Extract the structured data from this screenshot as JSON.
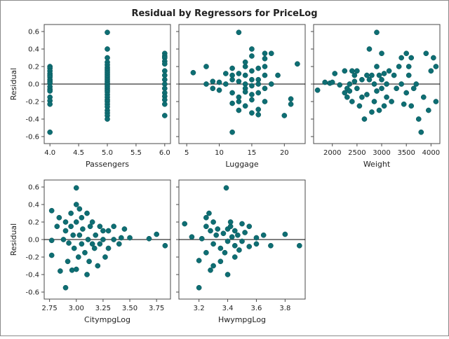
{
  "title": "Residual by Regressors for PriceLog",
  "colors": {
    "marker": "#0e6e73",
    "frame": "#4a4a4a",
    "refline": "#000000",
    "background": "#ffffff"
  },
  "chart_data": [
    {
      "type": "scatter",
      "xlabel": "Passengers",
      "ylabel": "Residual",
      "xlim": [
        3.9,
        6.1
      ],
      "ylim": [
        -0.68,
        0.68
      ],
      "xticks": [
        4.0,
        4.5,
        5.0,
        5.5,
        6.0
      ],
      "xtick_labels": [
        "4.0",
        "4.5",
        "5.0",
        "5.5",
        "6.0"
      ],
      "yticks": [
        -0.6,
        -0.4,
        -0.2,
        0.0,
        0.2,
        0.4,
        0.6
      ],
      "ytick_labels": [
        "-0.6",
        "-0.4",
        "-0.2",
        "0.0",
        "0.2",
        "0.4",
        "0.6"
      ],
      "points": [
        [
          4,
          0.2
        ],
        [
          4,
          0.18
        ],
        [
          4,
          0.15
        ],
        [
          4,
          0.12
        ],
        [
          4,
          0.1
        ],
        [
          4,
          0.08
        ],
        [
          4,
          0.05
        ],
        [
          4,
          0.03
        ],
        [
          4,
          0.01
        ],
        [
          4,
          -0.03
        ],
        [
          4,
          -0.06
        ],
        [
          4,
          -0.08
        ],
        [
          4,
          -0.15
        ],
        [
          4,
          -0.19
        ],
        [
          4,
          -0.23
        ],
        [
          4,
          -0.55
        ],
        [
          5,
          0.59
        ],
        [
          5,
          0.4
        ],
        [
          5,
          0.3
        ],
        [
          5,
          0.25
        ],
        [
          5,
          0.22
        ],
        [
          5,
          0.19
        ],
        [
          5,
          0.17
        ],
        [
          5,
          0.15
        ],
        [
          5,
          0.13
        ],
        [
          5,
          0.11
        ],
        [
          5,
          0.09
        ],
        [
          5,
          0.07
        ],
        [
          5,
          0.05
        ],
        [
          5,
          0.03
        ],
        [
          5,
          0.01
        ],
        [
          5,
          -0.01
        ],
        [
          5,
          -0.03
        ],
        [
          5,
          -0.05
        ],
        [
          5,
          -0.07
        ],
        [
          5,
          -0.09
        ],
        [
          5,
          -0.12
        ],
        [
          5,
          -0.15
        ],
        [
          5,
          -0.18
        ],
        [
          5,
          -0.2
        ],
        [
          5,
          -0.23
        ],
        [
          5,
          -0.26
        ],
        [
          5,
          -0.3
        ],
        [
          5,
          -0.33
        ],
        [
          5,
          -0.36
        ],
        [
          5,
          -0.4
        ],
        [
          6,
          0.35
        ],
        [
          6,
          0.32
        ],
        [
          6,
          0.3
        ],
        [
          6,
          0.26
        ],
        [
          6,
          0.23
        ],
        [
          6,
          0.15
        ],
        [
          6,
          0.1
        ],
        [
          6,
          0.05
        ],
        [
          6,
          0.0
        ],
        [
          6,
          -0.05
        ],
        [
          6,
          -0.1
        ],
        [
          6,
          -0.14
        ],
        [
          6,
          -0.18
        ],
        [
          6,
          -0.23
        ],
        [
          6,
          -0.36
        ]
      ]
    },
    {
      "type": "scatter",
      "xlabel": "Luggage",
      "ylabel": "",
      "xlim": [
        3.8,
        23.2
      ],
      "ylim": [
        -0.68,
        0.68
      ],
      "xticks": [
        5,
        10,
        15,
        20
      ],
      "xtick_labels": [
        "5",
        "10",
        "15",
        "20"
      ],
      "yticks": [
        -0.6,
        -0.4,
        -0.2,
        0.0,
        0.2,
        0.4,
        0.6
      ],
      "ytick_labels": [],
      "points": [
        [
          6,
          0.13
        ],
        [
          8,
          0.2
        ],
        [
          8,
          0.0
        ],
        [
          9,
          0.03
        ],
        [
          9,
          -0.05
        ],
        [
          10,
          0.02
        ],
        [
          10,
          -0.07
        ],
        [
          11,
          0.0
        ],
        [
          11,
          0.12
        ],
        [
          12,
          -0.22
        ],
        [
          12,
          0.1
        ],
        [
          12,
          0.05
        ],
        [
          12,
          -0.55
        ],
        [
          12,
          0.18
        ],
        [
          12,
          -0.1
        ],
        [
          13,
          0.59
        ],
        [
          13,
          -0.2
        ],
        [
          13,
          0.03
        ],
        [
          13,
          -0.3
        ],
        [
          13,
          0.12
        ],
        [
          13,
          -0.15
        ],
        [
          14,
          0.2
        ],
        [
          14,
          0.0
        ],
        [
          14,
          -0.25
        ],
        [
          14,
          0.1
        ],
        [
          14,
          -0.05
        ],
        [
          14,
          0.25
        ],
        [
          14,
          -0.09
        ],
        [
          15,
          0.4
        ],
        [
          15,
          0.32
        ],
        [
          15,
          0.15
        ],
        [
          15,
          0.05
        ],
        [
          15,
          -0.02
        ],
        [
          15,
          -0.12
        ],
        [
          15,
          -0.18
        ],
        [
          15,
          -0.33
        ],
        [
          16,
          0.18
        ],
        [
          16,
          -0.35
        ],
        [
          16,
          0.05
        ],
        [
          16,
          -0.29
        ],
        [
          16,
          0.0
        ],
        [
          16,
          -0.1
        ],
        [
          17,
          0.2
        ],
        [
          17,
          0.1
        ],
        [
          17,
          -0.05
        ],
        [
          17,
          0.35
        ],
        [
          17,
          -0.2
        ],
        [
          17,
          0.29
        ],
        [
          18,
          0.35
        ],
        [
          18,
          0.0
        ],
        [
          19,
          0.1
        ],
        [
          20,
          -0.36
        ],
        [
          21,
          -0.17
        ],
        [
          21,
          -0.23
        ],
        [
          22,
          0.23
        ]
      ]
    },
    {
      "type": "scatter",
      "xlabel": "Weight",
      "ylabel": "",
      "xlim": [
        1620,
        4180
      ],
      "ylim": [
        -0.68,
        0.68
      ],
      "xticks": [
        2000,
        2500,
        3000,
        3500,
        4000
      ],
      "xtick_labels": [
        "2000",
        "2500",
        "3000",
        "3500",
        "4000"
      ],
      "yticks": [
        -0.6,
        -0.4,
        -0.2,
        0.0,
        0.2,
        0.4,
        0.6
      ],
      "ytick_labels": [],
      "points": [
        [
          1700,
          -0.07
        ],
        [
          1850,
          0.02
        ],
        [
          1950,
          0.01
        ],
        [
          2000,
          0.02
        ],
        [
          2050,
          0.12
        ],
        [
          2150,
          -0.01
        ],
        [
          2250,
          0.15
        ],
        [
          2250,
          -0.1
        ],
        [
          2300,
          -0.05
        ],
        [
          2300,
          -0.15
        ],
        [
          2350,
          0.0
        ],
        [
          2350,
          -0.08
        ],
        [
          2400,
          0.15
        ],
        [
          2400,
          -0.2
        ],
        [
          2450,
          0.1
        ],
        [
          2450,
          0.03
        ],
        [
          2500,
          0.15
        ],
        [
          2500,
          -0.05
        ],
        [
          2550,
          -0.25
        ],
        [
          2600,
          0.05
        ],
        [
          2600,
          -0.15
        ],
        [
          2650,
          -0.4
        ],
        [
          2700,
          0.1
        ],
        [
          2700,
          -0.12
        ],
        [
          2750,
          0.4
        ],
        [
          2750,
          0.05
        ],
        [
          2800,
          -0.32
        ],
        [
          2800,
          0.1
        ],
        [
          2850,
          -0.2
        ],
        [
          2850,
          0.0
        ],
        [
          2900,
          0.59
        ],
        [
          2900,
          0.2
        ],
        [
          2900,
          -0.08
        ],
        [
          2950,
          0.1
        ],
        [
          2950,
          -0.3
        ],
        [
          3000,
          0.35
        ],
        [
          3000,
          0.05
        ],
        [
          3000,
          -0.05
        ],
        [
          3050,
          -0.25
        ],
        [
          3050,
          0.12
        ],
        [
          3100,
          0.0
        ],
        [
          3100,
          -0.15
        ],
        [
          3150,
          0.15
        ],
        [
          3200,
          -0.2
        ],
        [
          3250,
          0.1
        ],
        [
          3300,
          -0.05
        ],
        [
          3350,
          0.2
        ],
        [
          3400,
          0.3
        ],
        [
          3400,
          0.0
        ],
        [
          3450,
          -0.23
        ],
        [
          3500,
          0.35
        ],
        [
          3500,
          -0.1
        ],
        [
          3550,
          0.1
        ],
        [
          3550,
          0.2
        ],
        [
          3600,
          0.3
        ],
        [
          3600,
          -0.25
        ],
        [
          3650,
          -0.05
        ],
        [
          3700,
          0.0
        ],
        [
          3750,
          -0.4
        ],
        [
          3800,
          -0.55
        ],
        [
          3850,
          -0.15
        ],
        [
          3900,
          0.35
        ],
        [
          3950,
          -0.3
        ],
        [
          4000,
          0.15
        ],
        [
          4050,
          0.3
        ],
        [
          4100,
          -0.2
        ],
        [
          4100,
          0.2
        ]
      ]
    },
    {
      "type": "scatter",
      "xlabel": "CitympgLog",
      "ylabel": "Residual",
      "xlim": [
        2.7,
        3.88
      ],
      "ylim": [
        -0.68,
        0.68
      ],
      "xticks": [
        2.75,
        3.0,
        3.25,
        3.5,
        3.75
      ],
      "xtick_labels": [
        "2.75",
        "3.00",
        "3.25",
        "3.50",
        "3.75"
      ],
      "yticks": [
        -0.6,
        -0.4,
        -0.2,
        0.0,
        0.2,
        0.4,
        0.6
      ],
      "ytick_labels": [
        "-0.6",
        "-0.4",
        "-0.2",
        "0.0",
        "0.2",
        "0.4",
        "0.6"
      ],
      "points": [
        [
          2.77,
          0.33
        ],
        [
          2.77,
          -0.01
        ],
        [
          2.77,
          -0.18
        ],
        [
          2.82,
          0.15
        ],
        [
          2.84,
          0.25
        ],
        [
          2.85,
          -0.36
        ],
        [
          2.88,
          0.0
        ],
        [
          2.9,
          -0.55
        ],
        [
          2.9,
          0.2
        ],
        [
          2.9,
          0.1
        ],
        [
          2.92,
          -0.25
        ],
        [
          2.93,
          -0.04
        ],
        [
          2.95,
          0.3
        ],
        [
          2.95,
          0.15
        ],
        [
          2.96,
          -0.35
        ],
        [
          2.97,
          0.05
        ],
        [
          2.98,
          -0.1
        ],
        [
          3.0,
          0.59
        ],
        [
          3.0,
          0.4
        ],
        [
          3.0,
          0.2
        ],
        [
          3.0,
          -0.34
        ],
        [
          3.02,
          -0.2
        ],
        [
          3.03,
          0.35
        ],
        [
          3.03,
          0.05
        ],
        [
          3.05,
          0.25
        ],
        [
          3.05,
          -0.05
        ],
        [
          3.06,
          0.12
        ],
        [
          3.08,
          -0.15
        ],
        [
          3.1,
          0.3
        ],
        [
          3.1,
          -0.4
        ],
        [
          3.11,
          0.0
        ],
        [
          3.12,
          -0.25
        ],
        [
          3.13,
          0.15
        ],
        [
          3.15,
          0.2
        ],
        [
          3.15,
          -0.05
        ],
        [
          3.17,
          -0.1
        ],
        [
          3.18,
          0.05
        ],
        [
          3.2,
          -0.3
        ],
        [
          3.22,
          0.15
        ],
        [
          3.22,
          -0.05
        ],
        [
          3.25,
          0.1
        ],
        [
          3.25,
          0.0
        ],
        [
          3.27,
          -0.2
        ],
        [
          3.3,
          0.1
        ],
        [
          3.3,
          -0.1
        ],
        [
          3.35,
          0.15
        ],
        [
          3.35,
          0.0
        ],
        [
          3.4,
          -0.05
        ],
        [
          3.42,
          0.02
        ],
        [
          3.45,
          0.12
        ],
        [
          3.5,
          0.02
        ],
        [
          3.68,
          0.01
        ],
        [
          3.75,
          0.06
        ],
        [
          3.83,
          -0.07
        ]
      ]
    },
    {
      "type": "scatter",
      "xlabel": "HwympgLog",
      "ylabel": "",
      "xlim": [
        3.06,
        3.94
      ],
      "ylim": [
        -0.68,
        0.68
      ],
      "xticks": [
        3.2,
        3.4,
        3.6,
        3.8
      ],
      "xtick_labels": [
        "3.2",
        "3.4",
        "3.6",
        "3.8"
      ],
      "yticks": [
        -0.6,
        -0.4,
        -0.2,
        0.0,
        0.2,
        0.4,
        0.6
      ],
      "ytick_labels": [],
      "points": [
        [
          3.1,
          0.18
        ],
        [
          3.15,
          0.03
        ],
        [
          3.2,
          -0.55
        ],
        [
          3.2,
          -0.24
        ],
        [
          3.22,
          0.01
        ],
        [
          3.25,
          0.25
        ],
        [
          3.25,
          0.15
        ],
        [
          3.25,
          -0.15
        ],
        [
          3.27,
          0.3
        ],
        [
          3.28,
          -0.35
        ],
        [
          3.28,
          0.1
        ],
        [
          3.3,
          0.2
        ],
        [
          3.3,
          -0.05
        ],
        [
          3.3,
          -0.3
        ],
        [
          3.32,
          0.05
        ],
        [
          3.33,
          0.12
        ],
        [
          3.35,
          -0.1
        ],
        [
          3.35,
          -0.25
        ],
        [
          3.37,
          0.07
        ],
        [
          3.38,
          -0.15
        ],
        [
          3.39,
          0.59
        ],
        [
          3.4,
          -0.4
        ],
        [
          3.4,
          0.12
        ],
        [
          3.4,
          -0.02
        ],
        [
          3.42,
          0.15
        ],
        [
          3.42,
          0.2
        ],
        [
          3.43,
          0.03
        ],
        [
          3.45,
          -0.2
        ],
        [
          3.45,
          0.1
        ],
        [
          3.45,
          -0.07
        ],
        [
          3.47,
          0.05
        ],
        [
          3.48,
          -0.12
        ],
        [
          3.5,
          0.18
        ],
        [
          3.5,
          -0.02
        ],
        [
          3.52,
          0.08
        ],
        [
          3.55,
          0.15
        ],
        [
          3.55,
          -0.08
        ],
        [
          3.6,
          0.02
        ],
        [
          3.6,
          -0.05
        ],
        [
          3.65,
          0.05
        ],
        [
          3.7,
          -0.07
        ],
        [
          3.8,
          0.06
        ],
        [
          3.9,
          -0.07
        ]
      ]
    }
  ]
}
